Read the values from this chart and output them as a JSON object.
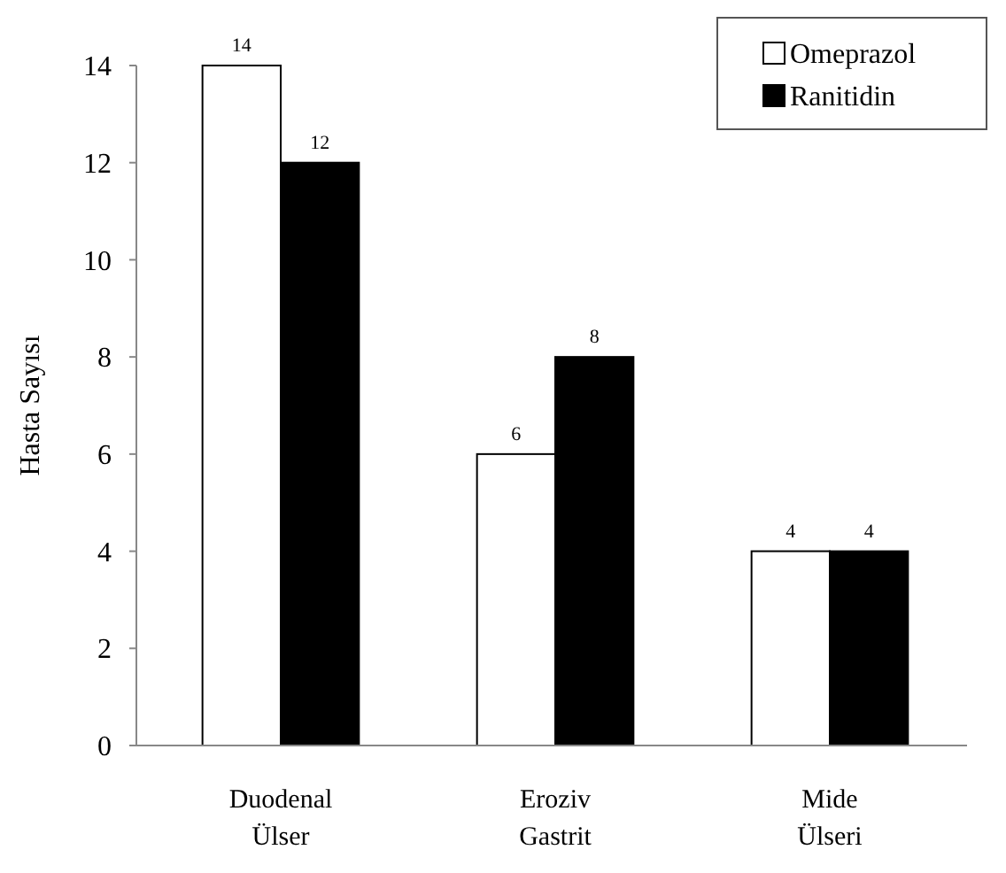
{
  "chart_data": {
    "type": "bar",
    "ylabel": "Hasta Sayısı",
    "categories": [
      "Duodenal Ülser",
      "Eroziv Gastrit",
      "Mide Ülseri"
    ],
    "series": [
      {
        "name": "Omeprazol",
        "color": "#ffffff",
        "values": [
          14,
          6,
          4
        ]
      },
      {
        "name": "Ranitidin",
        "color": "#000000",
        "values": [
          12,
          8,
          4
        ]
      }
    ],
    "ylim": [
      0,
      14
    ],
    "yticks": [
      0,
      2,
      4,
      6,
      8,
      10,
      12,
      14
    ],
    "data_labels": true,
    "legend": "top right",
    "grid": false
  }
}
